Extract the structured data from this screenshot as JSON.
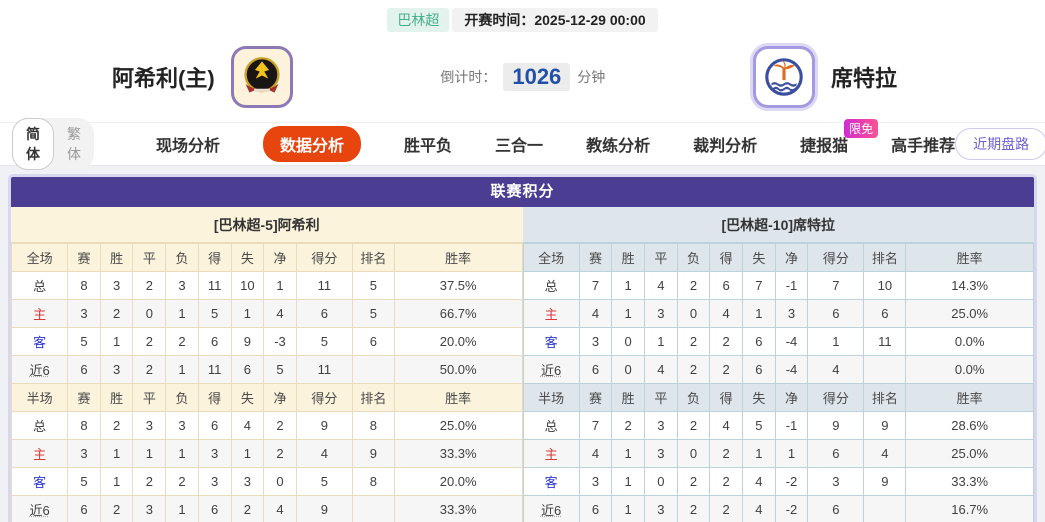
{
  "header": {
    "league_badge": "巴林超",
    "kickoff_label": "开赛时间：",
    "kickoff_time": "2025-12-29 00:00",
    "home_team": "阿希利(主)",
    "away_team": "席特拉",
    "countdown_label": "倒计时：",
    "countdown_value": "1026",
    "countdown_unit": "分钟"
  },
  "nav": {
    "lang_simplified": "简体",
    "lang_traditional": "繁体",
    "tabs": [
      {
        "label": "现场分析",
        "active": false
      },
      {
        "label": "数据分析",
        "active": true
      },
      {
        "label": "胜平负",
        "active": false
      },
      {
        "label": "三合一",
        "active": false
      },
      {
        "label": "教练分析",
        "active": false
      },
      {
        "label": "裁判分析",
        "active": false
      },
      {
        "label": "捷报猫",
        "active": false,
        "badge": "限免"
      },
      {
        "label": "高手推荐",
        "active": false
      }
    ],
    "recent_button": "近期盘路"
  },
  "league_table": {
    "title": "联赛积分",
    "columns_full": [
      "全场",
      "赛",
      "胜",
      "平",
      "负",
      "得",
      "失",
      "净",
      "得分",
      "排名",
      "胜率"
    ],
    "columns_half": [
      "半场",
      "赛",
      "胜",
      "平",
      "负",
      "得",
      "失",
      "净",
      "得分",
      "排名",
      "胜率"
    ],
    "home": {
      "team_title": "[巴林超-5]阿希利",
      "full": [
        {
          "label": "总",
          "cells": [
            "8",
            "3",
            "2",
            "3",
            "11",
            "10",
            "1",
            "11",
            "5",
            "37.5%"
          ]
        },
        {
          "label": "主",
          "cells": [
            "3",
            "2",
            "0",
            "1",
            "5",
            "1",
            "4",
            "6",
            "5",
            "66.7%"
          ]
        },
        {
          "label": "客",
          "cells": [
            "5",
            "1",
            "2",
            "2",
            "6",
            "9",
            "-3",
            "5",
            "6",
            "20.0%"
          ]
        },
        {
          "label": "近6",
          "cells": [
            "6",
            "3",
            "2",
            "1",
            "11",
            "6",
            "5",
            "11",
            "",
            "50.0%"
          ]
        }
      ],
      "half": [
        {
          "label": "总",
          "cells": [
            "8",
            "2",
            "3",
            "3",
            "6",
            "4",
            "2",
            "9",
            "8",
            "25.0%"
          ]
        },
        {
          "label": "主",
          "cells": [
            "3",
            "1",
            "1",
            "1",
            "3",
            "1",
            "2",
            "4",
            "9",
            "33.3%"
          ]
        },
        {
          "label": "客",
          "cells": [
            "5",
            "1",
            "2",
            "2",
            "3",
            "3",
            "0",
            "5",
            "8",
            "20.0%"
          ]
        },
        {
          "label": "近6",
          "cells": [
            "6",
            "2",
            "3",
            "1",
            "6",
            "2",
            "4",
            "9",
            "",
            "33.3%"
          ]
        }
      ]
    },
    "away": {
      "team_title": "[巴林超-10]席特拉",
      "full": [
        {
          "label": "总",
          "cells": [
            "7",
            "1",
            "4",
            "2",
            "6",
            "7",
            "-1",
            "7",
            "10",
            "14.3%"
          ]
        },
        {
          "label": "主",
          "cells": [
            "4",
            "1",
            "3",
            "0",
            "4",
            "1",
            "3",
            "6",
            "6",
            "25.0%"
          ]
        },
        {
          "label": "客",
          "cells": [
            "3",
            "0",
            "1",
            "2",
            "2",
            "6",
            "-4",
            "1",
            "11",
            "0.0%"
          ]
        },
        {
          "label": "近6",
          "cells": [
            "6",
            "0",
            "4",
            "2",
            "2",
            "6",
            "-4",
            "4",
            "",
            "0.0%"
          ]
        }
      ],
      "half": [
        {
          "label": "总",
          "cells": [
            "7",
            "2",
            "3",
            "2",
            "4",
            "5",
            "-1",
            "9",
            "9",
            "28.6%"
          ]
        },
        {
          "label": "主",
          "cells": [
            "4",
            "1",
            "3",
            "0",
            "2",
            "1",
            "1",
            "6",
            "4",
            "25.0%"
          ]
        },
        {
          "label": "客",
          "cells": [
            "3",
            "1",
            "0",
            "2",
            "2",
            "4",
            "-2",
            "3",
            "9",
            "33.3%"
          ]
        },
        {
          "label": "近6",
          "cells": [
            "6",
            "1",
            "3",
            "2",
            "2",
            "4",
            "-2",
            "6",
            "",
            "16.7%"
          ]
        }
      ]
    }
  },
  "colors": {
    "panel_header_purple": "#4b3d92",
    "active_tab_orange": "#e8440e",
    "home_theme_cream": "#fcf3dc",
    "away_theme_blue": "#dee5eb",
    "home_row_red": "#dc3838",
    "away_row_blue": "#2c35cc",
    "league_badge_green": "#45ae8c",
    "countdown_blue": "#2050a8",
    "limited_badge_pink": "#fd5192",
    "recent_btn_purple": "#6f61d2"
  }
}
